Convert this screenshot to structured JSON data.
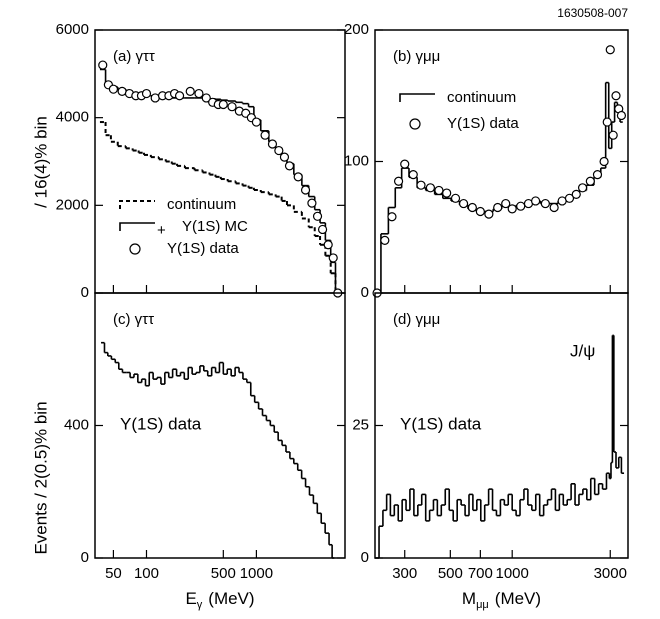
{
  "figure_id": "1630508-007",
  "ylabel_top": "/ 16(4)% bin",
  "ylabel_bottom": "Events / 2(0.5)% bin",
  "chart_data": [
    {
      "type": "step",
      "title": "(a) γττ",
      "xlog": true,
      "xlim": [
        34,
        6400
      ],
      "ylim": [
        0,
        6000
      ],
      "xticks": [
        50,
        100,
        500,
        1000
      ],
      "xticklabels": false,
      "yticks": [
        0,
        2000,
        4000,
        6000
      ],
      "legend": "lower left",
      "x": [
        40,
        45,
        50,
        60,
        70,
        80,
        90,
        100,
        120,
        140,
        160,
        180,
        200,
        250,
        300,
        350,
        400,
        450,
        500,
        600,
        700,
        800,
        900,
        1000,
        1200,
        1400,
        1600,
        1800,
        2000,
        2400,
        2800,
        3200,
        3600,
        4000,
        4500,
        5000,
        5500
      ],
      "series": [
        {
          "name": "continuum",
          "style": "dashed",
          "color": "#000000",
          "values": [
            3900,
            3600,
            3450,
            3350,
            3300,
            3250,
            3200,
            3150,
            3100,
            3050,
            3000,
            2950,
            2900,
            2850,
            2800,
            2750,
            2700,
            2650,
            2600,
            2550,
            2500,
            2450,
            2400,
            2350,
            2300,
            2250,
            2200,
            2100,
            2000,
            1850,
            1700,
            1500,
            1300,
            1100,
            850,
            450,
            0
          ]
        },
        {
          "name": "Υ(1S) MC",
          "legend_prefix": "+",
          "style": "solid",
          "color": "#000000",
          "values": [
            5100,
            4800,
            4700,
            4650,
            4600,
            4550,
            4550,
            4500,
            4500,
            4480,
            4480,
            4450,
            4450,
            4450,
            4450,
            4440,
            4430,
            4420,
            4400,
            4380,
            4350,
            4320,
            4250,
            3950,
            3700,
            3450,
            3300,
            3150,
            2950,
            2700,
            2450,
            2200,
            1900,
            1600,
            1200,
            700,
            0
          ]
        },
        {
          "name": "Υ(1S) data",
          "style": "circles",
          "color": "#000000",
          "values": [
            5200,
            4750,
            4650,
            4600,
            4550,
            4500,
            4500,
            4550,
            4450,
            4500,
            4500,
            4550,
            4500,
            4600,
            4550,
            4450,
            4350,
            4300,
            4300,
            4250,
            4150,
            4100,
            4000,
            3900,
            3600,
            3400,
            3250,
            3100,
            2900,
            2650,
            2350,
            2050,
            1750,
            1450,
            1100,
            800,
            0
          ]
        }
      ]
    },
    {
      "type": "step",
      "title": "(b) γμμ",
      "xlog": true,
      "xlim": [
        215,
        3660
      ],
      "ylim": [
        0,
        200
      ],
      "xticks": [
        300,
        500,
        700,
        1000,
        3000
      ],
      "xticklabels": false,
      "yticks": [
        0,
        100,
        200
      ],
      "legend": "upper left",
      "x": [
        220,
        240,
        260,
        280,
        300,
        330,
        360,
        400,
        440,
        480,
        530,
        580,
        640,
        700,
        770,
        850,
        930,
        1000,
        1100,
        1200,
        1300,
        1450,
        1600,
        1750,
        1900,
        2050,
        2200,
        2400,
        2600,
        2800,
        2900,
        3000,
        3100,
        3200,
        3300,
        3400
      ],
      "series": [
        {
          "name": "continuum",
          "style": "solid",
          "color": "#000000",
          "values": [
            0,
            45,
            65,
            80,
            95,
            88,
            80,
            78,
            75,
            72,
            70,
            67,
            64,
            62,
            62,
            64,
            66,
            66,
            67,
            68,
            70,
            68,
            68,
            70,
            72,
            75,
            78,
            82,
            88,
            95,
            160,
            110,
            130,
            145,
            138,
            130
          ]
        },
        {
          "name": "Υ(1S) data",
          "style": "circles",
          "color": "#000000",
          "values": [
            0,
            40,
            58,
            85,
            98,
            90,
            82,
            80,
            78,
            76,
            72,
            68,
            65,
            62,
            60,
            65,
            68,
            64,
            66,
            68,
            70,
            68,
            65,
            70,
            72,
            75,
            80,
            85,
            90,
            100,
            130,
            185,
            120,
            150,
            140,
            135
          ]
        }
      ]
    },
    {
      "type": "step",
      "title": "(c) γττ",
      "xlog": true,
      "xlim": [
        34,
        6400
      ],
      "ylim": [
        0,
        800
      ],
      "xticks": [
        50,
        100,
        500,
        1000
      ],
      "xticklabels": true,
      "yticks": [
        0,
        400
      ],
      "xlabel": {
        "symbol": "E",
        "subscript": "γ",
        "unit": "(MeV)"
      },
      "annotations": [
        "Υ(1S) data"
      ],
      "x": [
        40,
        43,
        46,
        50,
        54,
        58,
        63,
        68,
        74,
        80,
        87,
        94,
        102,
        110,
        120,
        130,
        141,
        153,
        166,
        180,
        196,
        212,
        230,
        250,
        271,
        294,
        319,
        346,
        376,
        408,
        443,
        480,
        521,
        566,
        614,
        667,
        724,
        786,
        853,
        926,
        1005,
        1091,
        1184,
        1285,
        1395,
        1514,
        1644,
        1784,
        1937,
        2102,
        2282,
        2477,
        2689,
        2919,
        3168,
        3439,
        3733,
        4052,
        4398,
        4774,
        5000
      ],
      "series": [
        {
          "name": "Υ(1S) data",
          "style": "solid",
          "color": "#000000",
          "values": [
            650,
            620,
            610,
            600,
            590,
            570,
            560,
            560,
            545,
            555,
            530,
            540,
            520,
            560,
            540,
            545,
            525,
            560,
            545,
            570,
            550,
            560,
            540,
            575,
            555,
            560,
            580,
            565,
            550,
            575,
            560,
            590,
            555,
            570,
            550,
            575,
            560,
            540,
            530,
            490,
            470,
            450,
            430,
            415,
            400,
            380,
            355,
            340,
            320,
            300,
            285,
            265,
            240,
            215,
            190,
            165,
            135,
            105,
            75,
            40,
            0
          ]
        }
      ]
    },
    {
      "type": "step",
      "title": "(d) γμμ",
      "xlog": true,
      "xlim": [
        215,
        3660
      ],
      "ylim": [
        0,
        50
      ],
      "xticks": [
        300,
        500,
        700,
        1000,
        3000
      ],
      "xticklabels": true,
      "yticks": [
        0,
        25
      ],
      "xlabel": {
        "symbol": "M",
        "subscript": "μμ",
        "unit": "(MeV)"
      },
      "annotations": [
        "Υ(1S) data",
        "J/ψ"
      ],
      "x": [
        220,
        230,
        240,
        250,
        261,
        273,
        285,
        298,
        311,
        325,
        340,
        355,
        371,
        388,
        405,
        423,
        442,
        462,
        483,
        505,
        528,
        552,
        577,
        603,
        630,
        658,
        688,
        719,
        751,
        785,
        820,
        857,
        896,
        936,
        978,
        1022,
        1068,
        1116,
        1166,
        1219,
        1274,
        1331,
        1391,
        1454,
        1519,
        1588,
        1659,
        1734,
        1812,
        1893,
        1978,
        2067,
        2160,
        2257,
        2359,
        2465,
        2576,
        2692,
        2813,
        2940,
        3000,
        3050,
        3097,
        3150,
        3250,
        3350,
        3450
      ],
      "series": [
        {
          "name": "Υ(1S) data",
          "style": "solid",
          "color": "#000000",
          "values": [
            0,
            6,
            9,
            12,
            8,
            10,
            7,
            11,
            9,
            13,
            8,
            10,
            12,
            7,
            9,
            11,
            8,
            10,
            13,
            9,
            7,
            11,
            10,
            8,
            12,
            9,
            11,
            7,
            10,
            13,
            9,
            8,
            11,
            10,
            12,
            9,
            8,
            11,
            13,
            10,
            9,
            12,
            8,
            10,
            11,
            13,
            9,
            12,
            10,
            11,
            14,
            10,
            12,
            13,
            11,
            15,
            12,
            14,
            13,
            16,
            15,
            18,
            42,
            20,
            17,
            19,
            16
          ]
        }
      ]
    }
  ]
}
